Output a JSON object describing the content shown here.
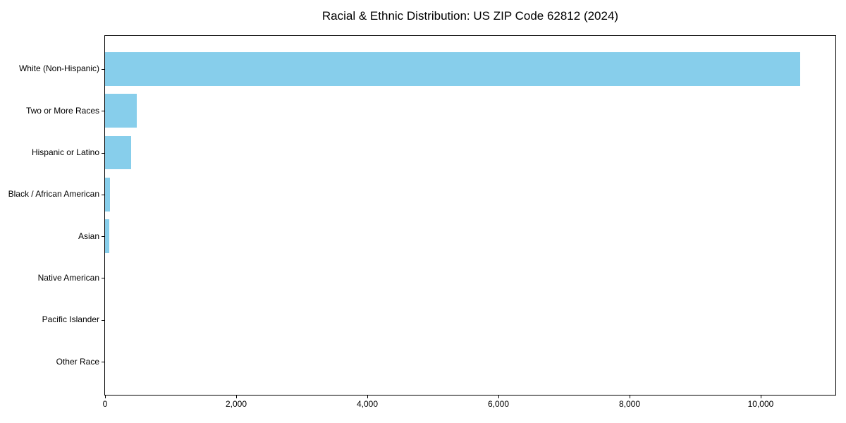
{
  "chart_data": {
    "type": "bar",
    "orientation": "horizontal",
    "title": "Racial & Ethnic Distribution: US ZIP Code 62812 (2024)",
    "categories": [
      "White (Non-Hispanic)",
      "Two or More Races",
      "Hispanic or Latino",
      "Black / African American",
      "Asian",
      "Native American",
      "Pacific Islander",
      "Other Race"
    ],
    "values": [
      10600,
      480,
      400,
      80,
      65,
      0,
      0,
      0
    ],
    "bar_color": "#87CEEB",
    "axis_color": "#000000",
    "background_color": "#ffffff",
    "xlim": [
      0,
      11140
    ],
    "x_ticks": [
      0,
      2000,
      4000,
      6000,
      8000,
      10000
    ],
    "x_tick_labels": [
      "0",
      "2,000",
      "4,000",
      "6,000",
      "8,000",
      "10,000"
    ],
    "xlabel": "",
    "ylabel": "",
    "grid": false,
    "legend": false
  }
}
